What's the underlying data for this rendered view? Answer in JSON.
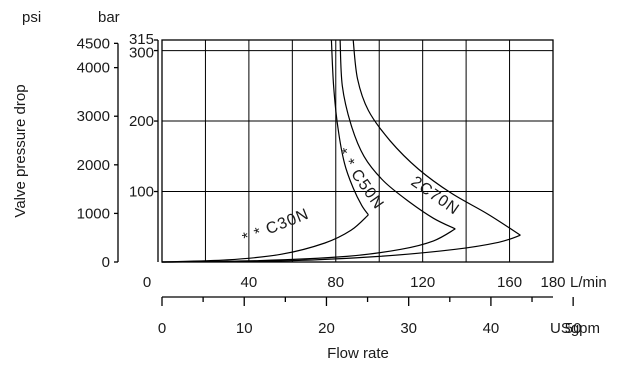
{
  "chart_data": {
    "type": "line",
    "title": "",
    "xlabel": "Flow rate",
    "ylabel": "Valve pressure drop",
    "axes": {
      "y_left_outer": {
        "unit": "psi",
        "ticks": [
          "0",
          "1000",
          "2000",
          "3000",
          "4000",
          "4500"
        ],
        "tick_values": [
          0,
          1000,
          2000,
          3000,
          4000,
          4500
        ]
      },
      "y_left_inner": {
        "unit": "bar",
        "ticks": [
          "100",
          "200",
          "300",
          "315"
        ],
        "tick_values": [
          100,
          200,
          300,
          315
        ]
      },
      "x_top": {
        "unit": "L/min",
        "ticks": [
          "0",
          "40",
          "80",
          "120",
          "160",
          "180"
        ],
        "tick_values": [
          0,
          40,
          80,
          120,
          160,
          180
        ],
        "grid_values": [
          0,
          20,
          40,
          60,
          80,
          100,
          120,
          140,
          160,
          180
        ]
      },
      "x_bottom": {
        "unit": "USgpm",
        "ticks": [
          "0",
          "10",
          "20",
          "30",
          "40",
          "50"
        ],
        "tick_values": [
          0,
          10,
          20,
          30,
          40,
          50
        ],
        "minor_values": [
          5,
          15,
          25,
          35,
          45
        ]
      }
    },
    "xlim": [
      0,
      180
    ],
    "ylim": [
      0,
      315
    ],
    "y_gridlines_bar": [
      100,
      200,
      300,
      315
    ],
    "grid": true,
    "series": [
      {
        "name": "* * C30N",
        "upper": [
          [
            78,
            315
          ],
          [
            79,
            250
          ],
          [
            81,
            190
          ],
          [
            84,
            140
          ],
          [
            88,
            105
          ],
          [
            92,
            80
          ],
          [
            95,
            67
          ]
        ],
        "lower": [
          [
            0,
            0
          ],
          [
            30,
            3
          ],
          [
            55,
            11
          ],
          [
            75,
            27
          ],
          [
            87,
            45
          ],
          [
            95,
            67
          ]
        ]
      },
      {
        "name": "* * C50N",
        "upper": [
          [
            82,
            315
          ],
          [
            83,
            250
          ],
          [
            87,
            195
          ],
          [
            93,
            150
          ],
          [
            102,
            115
          ],
          [
            114,
            85
          ],
          [
            125,
            62
          ],
          [
            135,
            47
          ]
        ],
        "lower": [
          [
            0,
            0
          ],
          [
            45,
            2
          ],
          [
            85,
            8
          ],
          [
            110,
            18
          ],
          [
            125,
            30
          ],
          [
            135,
            47
          ]
        ]
      },
      {
        "name": "2C70N",
        "upper": [
          [
            88,
            315
          ],
          [
            90,
            260
          ],
          [
            95,
            215
          ],
          [
            105,
            172
          ],
          [
            118,
            132
          ],
          [
            133,
            98
          ],
          [
            150,
            68
          ],
          [
            165,
            38
          ]
        ],
        "lower": [
          [
            0,
            0
          ],
          [
            60,
            2
          ],
          [
            100,
            8
          ],
          [
            135,
            18
          ],
          [
            155,
            28
          ],
          [
            165,
            38
          ]
        ]
      }
    ]
  }
}
